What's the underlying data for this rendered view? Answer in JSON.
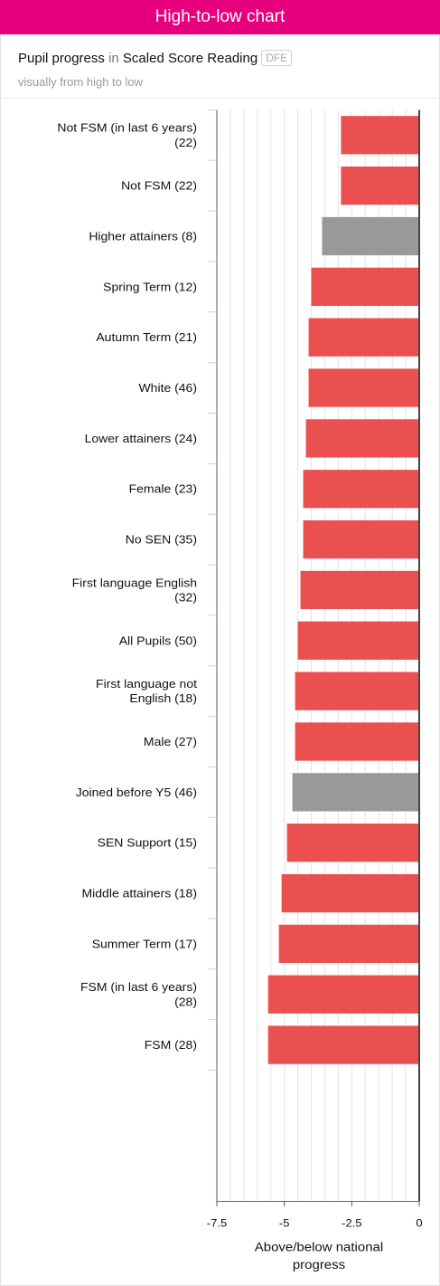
{
  "header": {
    "title": "High-to-low chart",
    "subtitle_prefix": "Pupil progress",
    "subtitle_in": "in",
    "subtitle_subject": "Scaled Score Reading",
    "badge": "DFE",
    "note": "visually from high to low"
  },
  "colors": {
    "brand": "#e6007e",
    "bar_red": "#eb5050",
    "bar_grey": "#999999"
  },
  "chart_data": {
    "type": "bar",
    "orientation": "horizontal",
    "categories": [
      [
        "Not FSM (in last 6 years)",
        "(22)"
      ],
      [
        "Not FSM (22)"
      ],
      [
        "Higher attainers (8)"
      ],
      [
        "Spring Term (12)"
      ],
      [
        "Autumn Term (21)"
      ],
      [
        "White (46)"
      ],
      [
        "Lower attainers (24)"
      ],
      [
        "Female (23)"
      ],
      [
        "No SEN (35)"
      ],
      [
        "First language English",
        "(32)"
      ],
      [
        "All Pupils (50)"
      ],
      [
        "First language not",
        "English (18)"
      ],
      [
        "Male (27)"
      ],
      [
        "Joined before Y5 (46)"
      ],
      [
        "SEN Support (15)"
      ],
      [
        "Middle attainers (18)"
      ],
      [
        "Summer Term (17)"
      ],
      [
        "FSM (in last 6 years)",
        "(28)"
      ],
      [
        "FSM (28)"
      ]
    ],
    "values": [
      -2.9,
      -2.9,
      -3.6,
      -4.0,
      -4.1,
      -4.1,
      -4.2,
      -4.3,
      -4.3,
      -4.4,
      -4.5,
      -4.6,
      -4.6,
      -4.7,
      -4.9,
      -5.1,
      -5.2,
      -5.6,
      -5.6
    ],
    "bar_colors": [
      "red",
      "red",
      "grey",
      "red",
      "red",
      "red",
      "red",
      "red",
      "red",
      "red",
      "red",
      "red",
      "red",
      "grey",
      "red",
      "red",
      "red",
      "red",
      "red"
    ],
    "xticks": [
      -7.5,
      -5,
      -2.5,
      0
    ],
    "xtick_labels": [
      "-7.5",
      "-5",
      "-2.5",
      "0"
    ],
    "xlim": [
      -7.5,
      0
    ],
    "xlabel_lines": [
      "Above/below national",
      "progress"
    ],
    "grid": true
  }
}
